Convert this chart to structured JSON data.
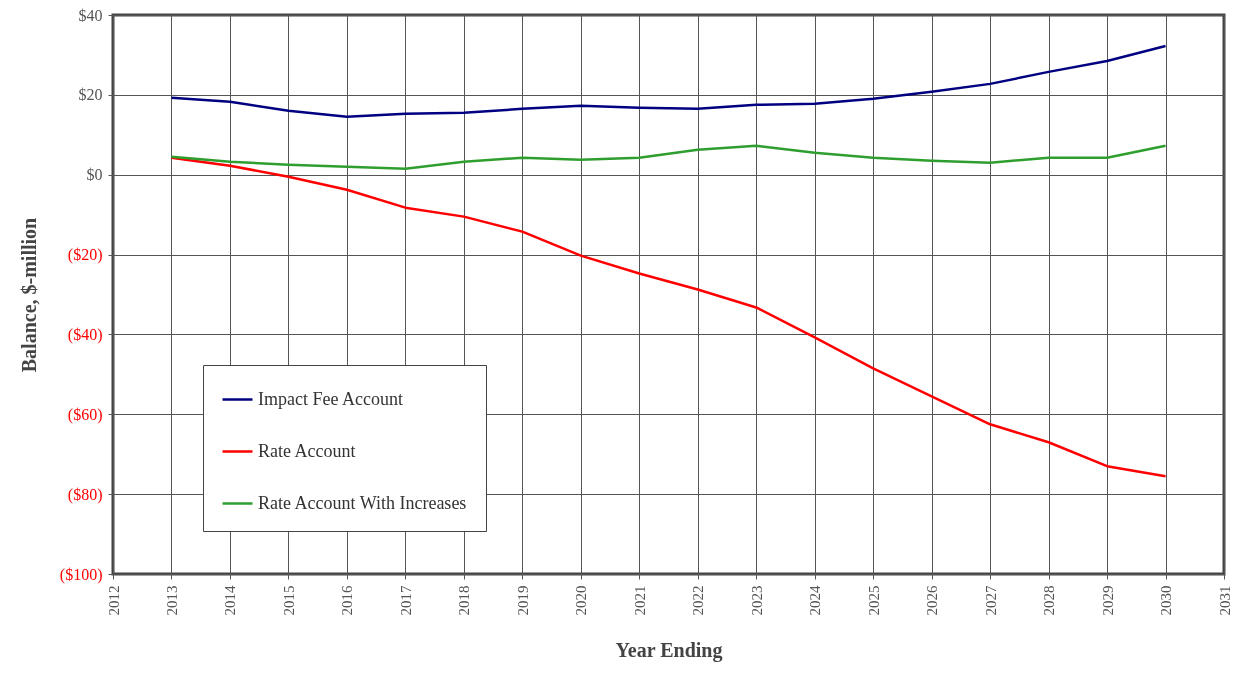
{
  "chart_data": {
    "type": "line",
    "xlabel": "Year Ending",
    "ylabel": "Balance, $-million",
    "x": [
      2013,
      2014,
      2015,
      2016,
      2017,
      2018,
      2019,
      2020,
      2021,
      2022,
      2023,
      2024,
      2025,
      2026,
      2027,
      2028,
      2029,
      2030
    ],
    "series": [
      {
        "name": "Impact Fee Account",
        "color": "#000080",
        "values": [
          19.25,
          18.25,
          16,
          14.5,
          15.25,
          15.5,
          16.5,
          17.25,
          16.75,
          16.5,
          17.5,
          17.75,
          19,
          20.75,
          22.75,
          25.75,
          28.5,
          32.25
        ]
      },
      {
        "name": "Rate Account",
        "color": "#ff0000",
        "values": [
          4.25,
          2.25,
          -0.5,
          -3.75,
          -8.25,
          -10.5,
          -14.25,
          -20.25,
          -24.75,
          -28.75,
          -33.25,
          -40.75,
          -48.5,
          -55.5,
          -62.5,
          -67,
          -73,
          -75.5
        ]
      },
      {
        "name": "Rate Account With Increases",
        "color": "#2e9e2e",
        "values": [
          4.5,
          3.25,
          2.5,
          2,
          1.5,
          3.25,
          4.25,
          3.75,
          4.25,
          6.25,
          7.25,
          5.5,
          4.25,
          3.5,
          3,
          4.25,
          4.25,
          7.25
        ]
      }
    ],
    "xlim": [
      2012,
      2031
    ],
    "xticks": [
      2012,
      2013,
      2014,
      2015,
      2016,
      2017,
      2018,
      2019,
      2020,
      2021,
      2022,
      2023,
      2024,
      2025,
      2026,
      2027,
      2028,
      2029,
      2030,
      2031
    ],
    "ylim": [
      -100,
      40
    ],
    "yticks": [
      {
        "value": -100,
        "label": "($100)"
      },
      {
        "value": -80,
        "label": "($80)"
      },
      {
        "value": -60,
        "label": "($60)"
      },
      {
        "value": -40,
        "label": "($40)"
      },
      {
        "value": -20,
        "label": "($20)"
      },
      {
        "value": 0,
        "label": "$0"
      },
      {
        "value": 20,
        "label": "$20"
      },
      {
        "value": 40,
        "label": "$40"
      }
    ],
    "grid": true,
    "legend": "bottom left",
    "line_style": "solid"
  }
}
